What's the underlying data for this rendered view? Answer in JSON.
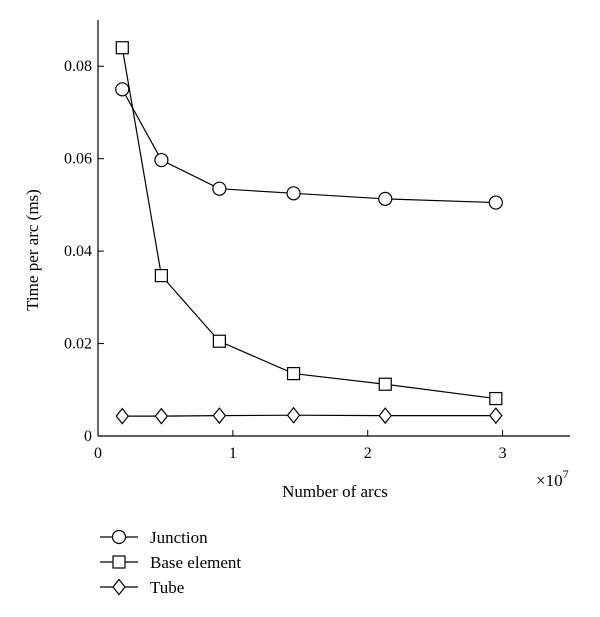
{
  "chart_data": {
    "type": "line",
    "xlabel": "Number of arcs",
    "ylabel": "Time per arc (ms)",
    "x_exponent_label": "×10",
    "x_exponent_power": "7",
    "xlim": [
      0,
      3.5
    ],
    "ylim": [
      0,
      0.09
    ],
    "x_ticks": [
      0,
      1,
      2,
      3
    ],
    "x_tick_labels": [
      "0",
      "1",
      "2",
      "3"
    ],
    "y_ticks": [
      0,
      0.02,
      0.04,
      0.06,
      0.08
    ],
    "y_tick_labels": [
      "0",
      "0.02",
      "0.04",
      "0.06",
      "0.08"
    ],
    "grid": false,
    "legend_position": "bottom-left, below plot",
    "x": [
      0.18,
      0.47,
      0.9,
      1.45,
      2.13,
      2.95
    ],
    "series": [
      {
        "name": "Junction",
        "marker": "circle",
        "values": [
          0.075,
          0.0597,
          0.0535,
          0.0525,
          0.0513,
          0.0505
        ]
      },
      {
        "name": "Base element",
        "marker": "square",
        "values": [
          0.084,
          0.0347,
          0.0205,
          0.0135,
          0.0112,
          0.0081
        ]
      },
      {
        "name": "Tube",
        "marker": "diamond",
        "values": [
          0.0043,
          0.0043,
          0.0044,
          0.0045,
          0.0044,
          0.0044
        ]
      }
    ]
  }
}
